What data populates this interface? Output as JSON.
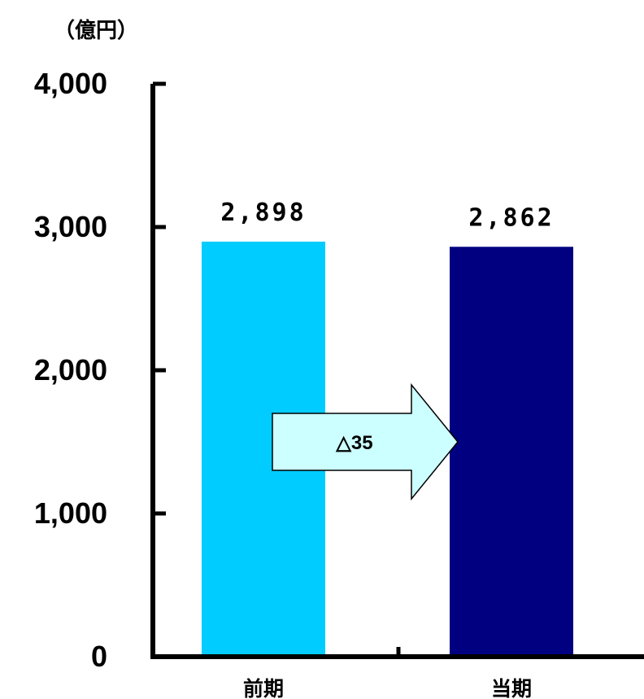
{
  "chart_data": {
    "type": "bar",
    "unit_label": "（億円）",
    "categories": [
      "前期",
      "当期"
    ],
    "values": [
      2898,
      2862
    ],
    "data_labels": [
      "2,898",
      "2,862"
    ],
    "colors": [
      "#00ccff",
      "#000080"
    ],
    "ylim": [
      0,
      4000
    ],
    "yticks": [
      0,
      1000,
      2000,
      3000,
      4000
    ],
    "ytick_labels": [
      "0",
      "1,000",
      "2,000",
      "3,000",
      "4,000"
    ],
    "grid": false,
    "annotation": {
      "text": "△35",
      "shape": "right-arrow",
      "fill": "#ccffff"
    }
  }
}
